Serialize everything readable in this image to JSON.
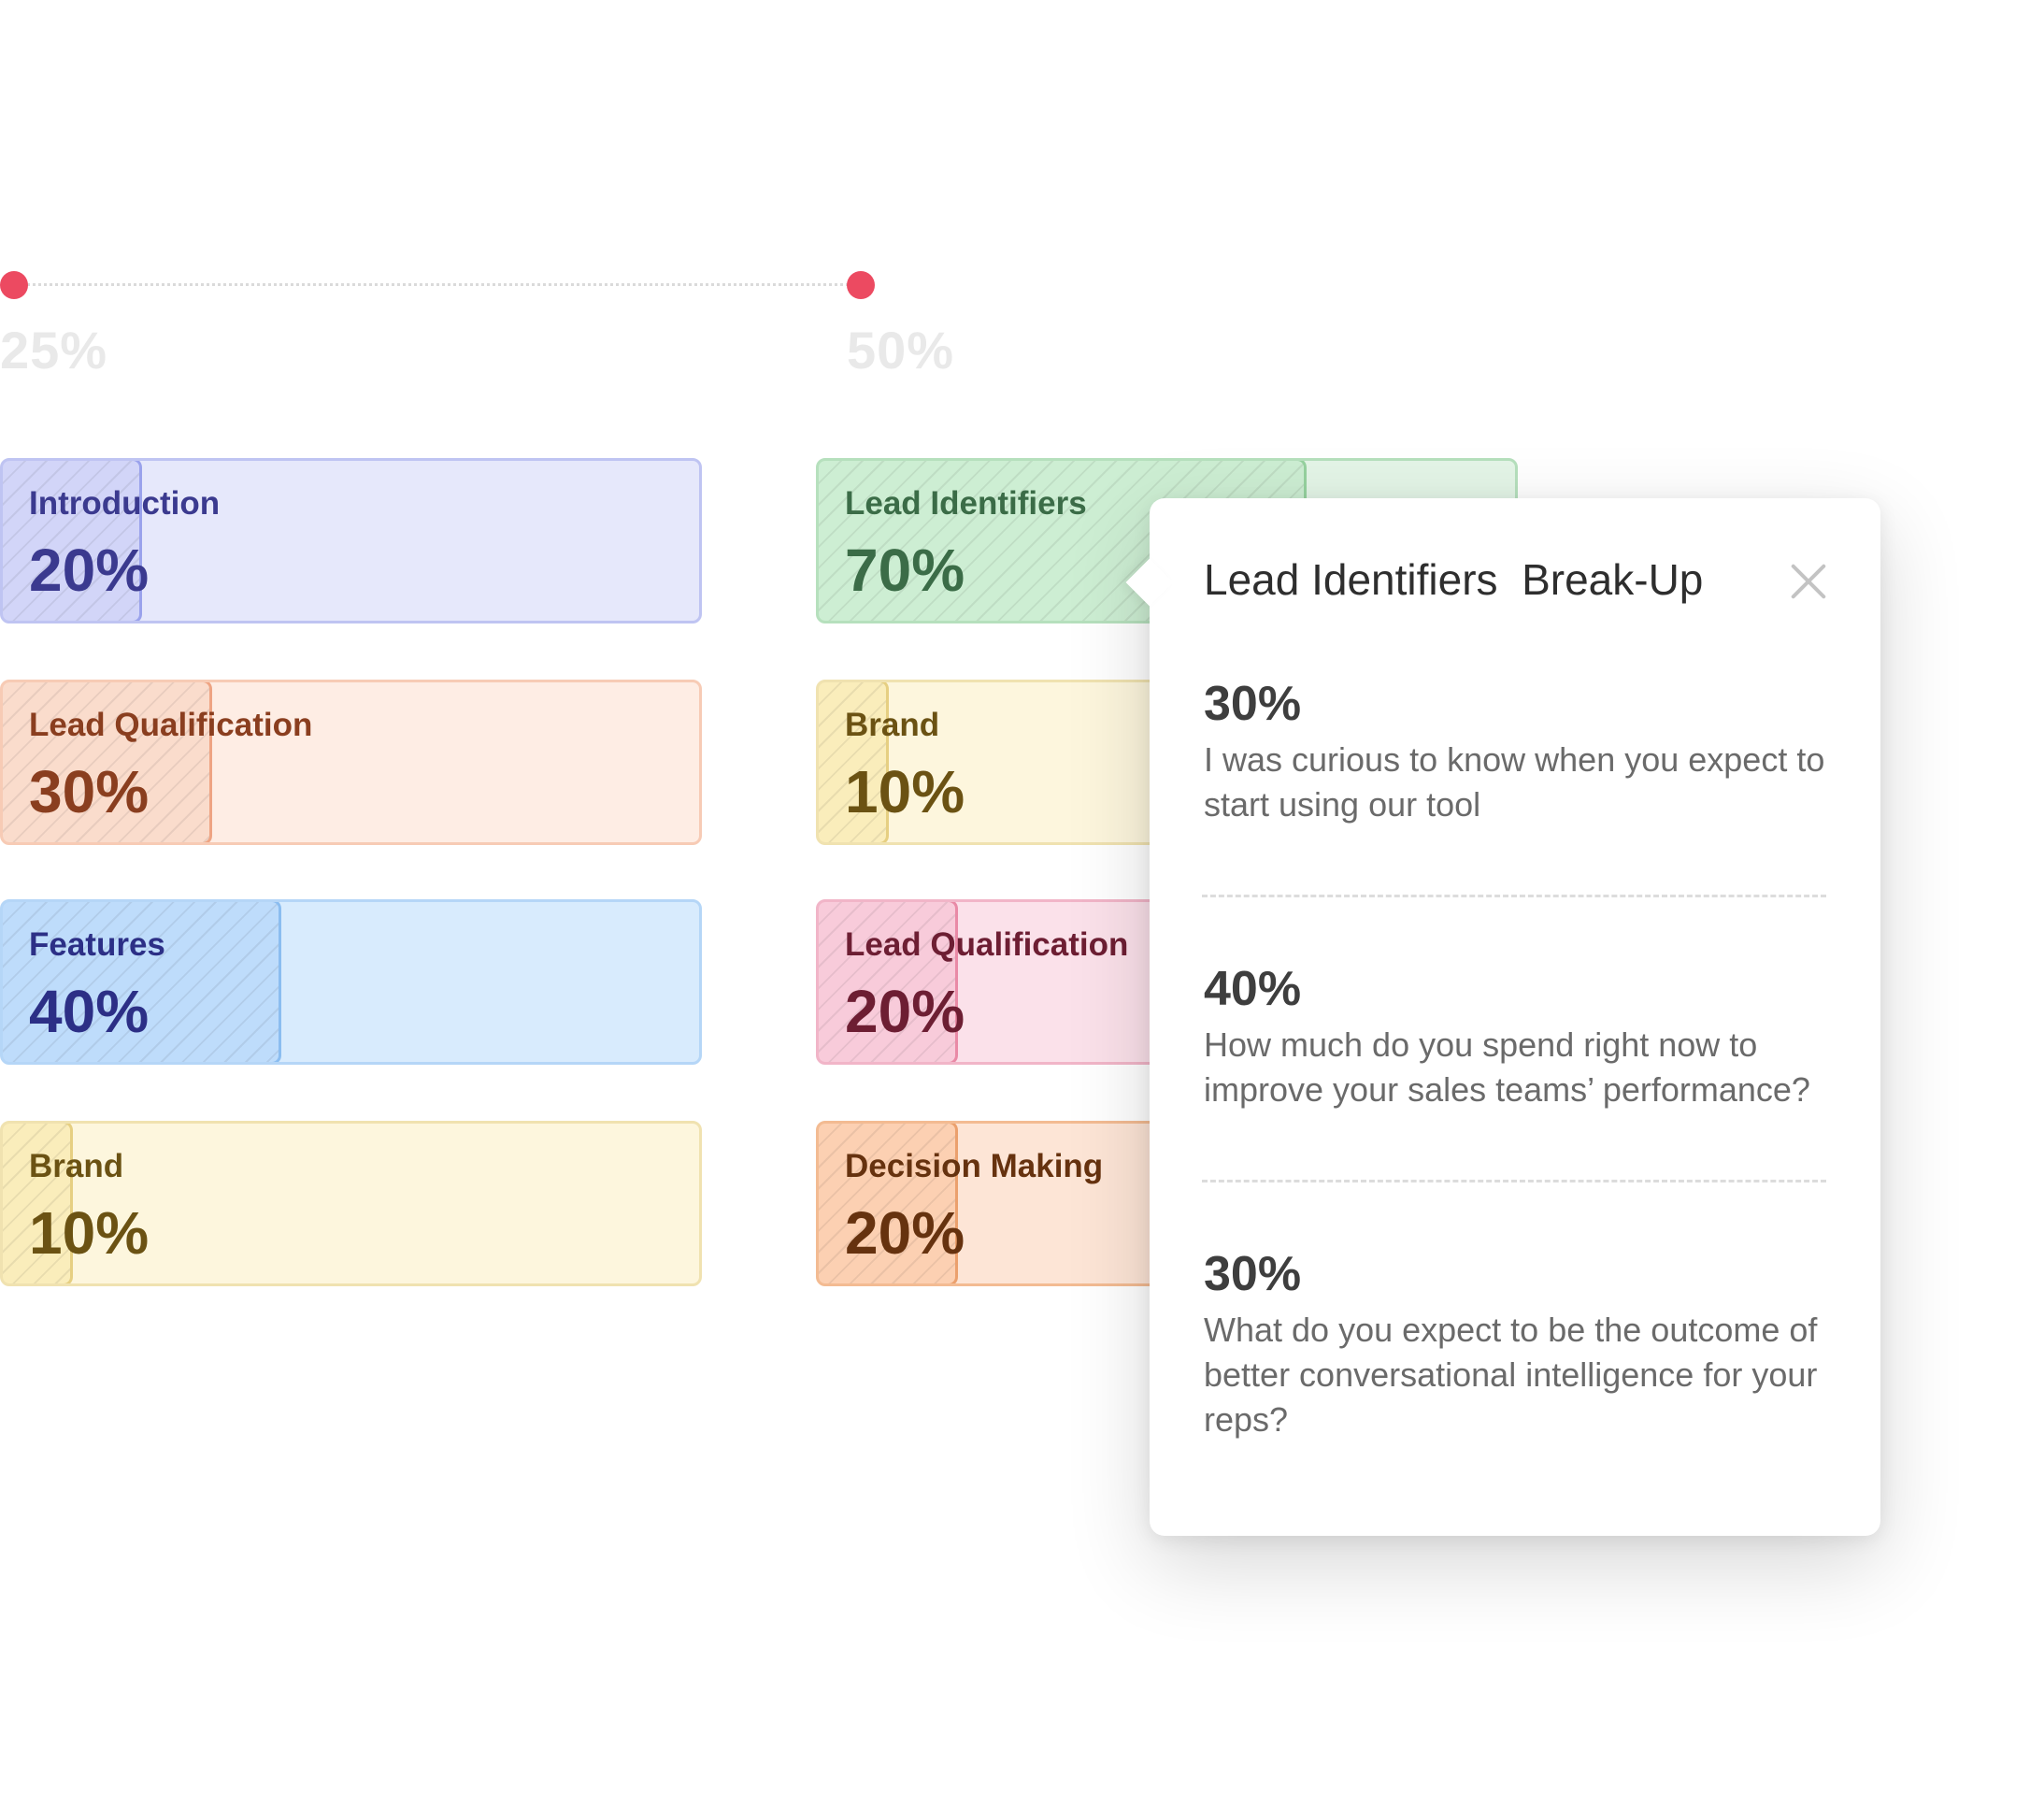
{
  "timeline": {
    "markers": [
      {
        "label": "25%"
      },
      {
        "label": "50%"
      }
    ],
    "marker_color": "#ec4a61"
  },
  "columns": [
    {
      "stages": [
        {
          "name": "Introduction",
          "percent": "20%",
          "fill_fraction": 0.2,
          "color": "blue"
        },
        {
          "name": "Lead Qualification",
          "percent": "30%",
          "fill_fraction": 0.3,
          "color": "salmon"
        },
        {
          "name": "Features",
          "percent": "40%",
          "fill_fraction": 0.4,
          "color": "sky"
        },
        {
          "name": "Brand",
          "percent": "10%",
          "fill_fraction": 0.1,
          "color": "yellow"
        }
      ]
    },
    {
      "stages": [
        {
          "name": "Lead Identifiers",
          "percent": "70%",
          "fill_fraction": 0.7,
          "color": "green"
        },
        {
          "name": "Brand",
          "percent": "10%",
          "fill_fraction": 0.1,
          "color": "yellow"
        },
        {
          "name": "Lead Qualification",
          "percent": "20%",
          "fill_fraction": 0.2,
          "color": "pink"
        },
        {
          "name": "Decision Making",
          "percent": "20%",
          "fill_fraction": 0.2,
          "color": "orange"
        }
      ]
    }
  ],
  "popover": {
    "title": "Lead Identifiers  Break-Up",
    "close_icon": "close-icon",
    "items": [
      {
        "percent": "30%",
        "text": "I was curious to know when you expect to start using our tool"
      },
      {
        "percent": "40%",
        "text": "How much do you spend right now to improve your sales teams’ performance?"
      },
      {
        "percent": "30%",
        "text": "What do you expect to be the outcome of better conversational intelligence for your reps?"
      }
    ]
  }
}
